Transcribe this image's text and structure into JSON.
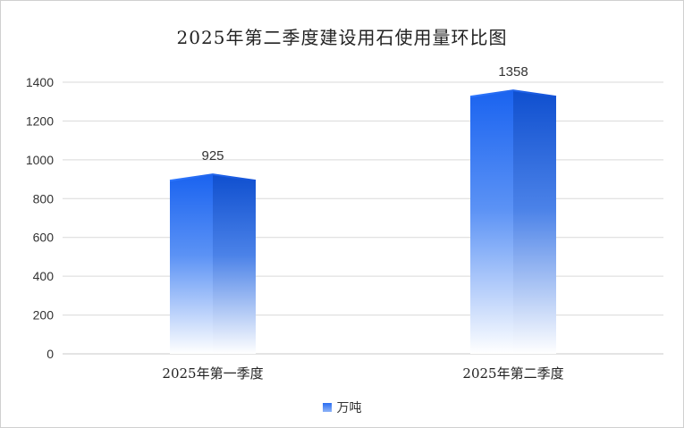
{
  "chart_data": {
    "type": "bar",
    "title": "2025年第二季度建设用石使用量环比图",
    "categories": [
      "2025年第一季度",
      "2025年第二季度"
    ],
    "series": [
      {
        "name": "万吨",
        "values": [
          925,
          1358
        ]
      }
    ],
    "data_labels": [
      "925",
      "1358"
    ],
    "y_ticks": [
      "0",
      "200",
      "400",
      "600",
      "800",
      "1000",
      "1200",
      "1400"
    ],
    "ylim": [
      0,
      1400
    ],
    "grid": true,
    "legend_position": "bottom",
    "colors": {
      "bar_top": "#1a63f0",
      "bar_bottom": "#ffffff",
      "grid": "#d9d9d9"
    }
  }
}
